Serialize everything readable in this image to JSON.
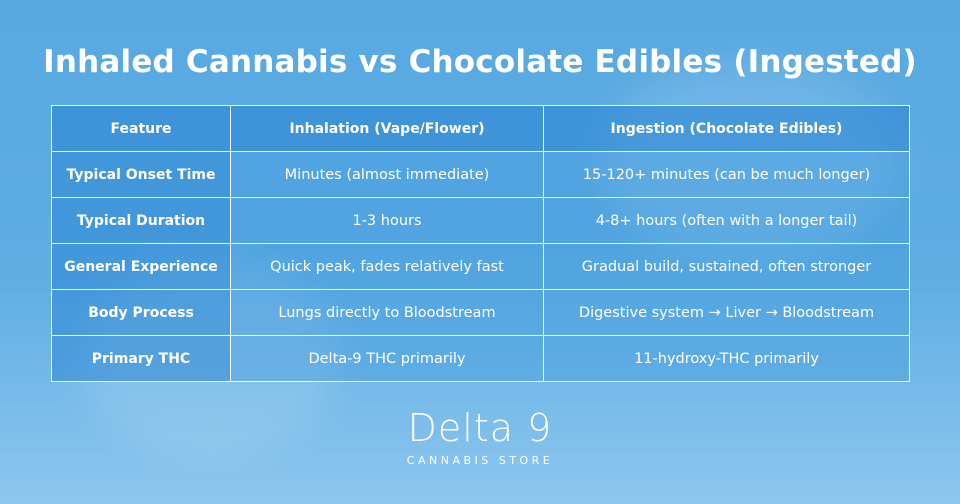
{
  "header": {
    "title": "Inhaled Cannabis vs Chocolate Edibles (Ingested)"
  },
  "table": {
    "columns": [
      "Feature",
      "Inhalation (Vape/Flower)",
      "Ingestion (Chocolate Edibles)"
    ],
    "rows": [
      [
        "Typical Onset Time",
        "Minutes (almost immediate)",
        "15-120+ minutes (can be much longer)"
      ],
      [
        "Typical Duration",
        "1-3 hours",
        "4-8+ hours (often with a longer tail)"
      ],
      [
        "General Experience",
        "Quick peak, fades relatively fast",
        "Gradual build, sustained, often stronger"
      ],
      [
        "Body Process",
        "Lungs directly to Bloodstream",
        "Digestive system → Liver → Bloodstream"
      ],
      [
        "Primary THC",
        "Delta-9 THC primarily",
        "11-hydroxy-THC primarily"
      ]
    ]
  },
  "logo": {
    "name": "Delta 9",
    "tagline": "CANNABIS STORE"
  }
}
